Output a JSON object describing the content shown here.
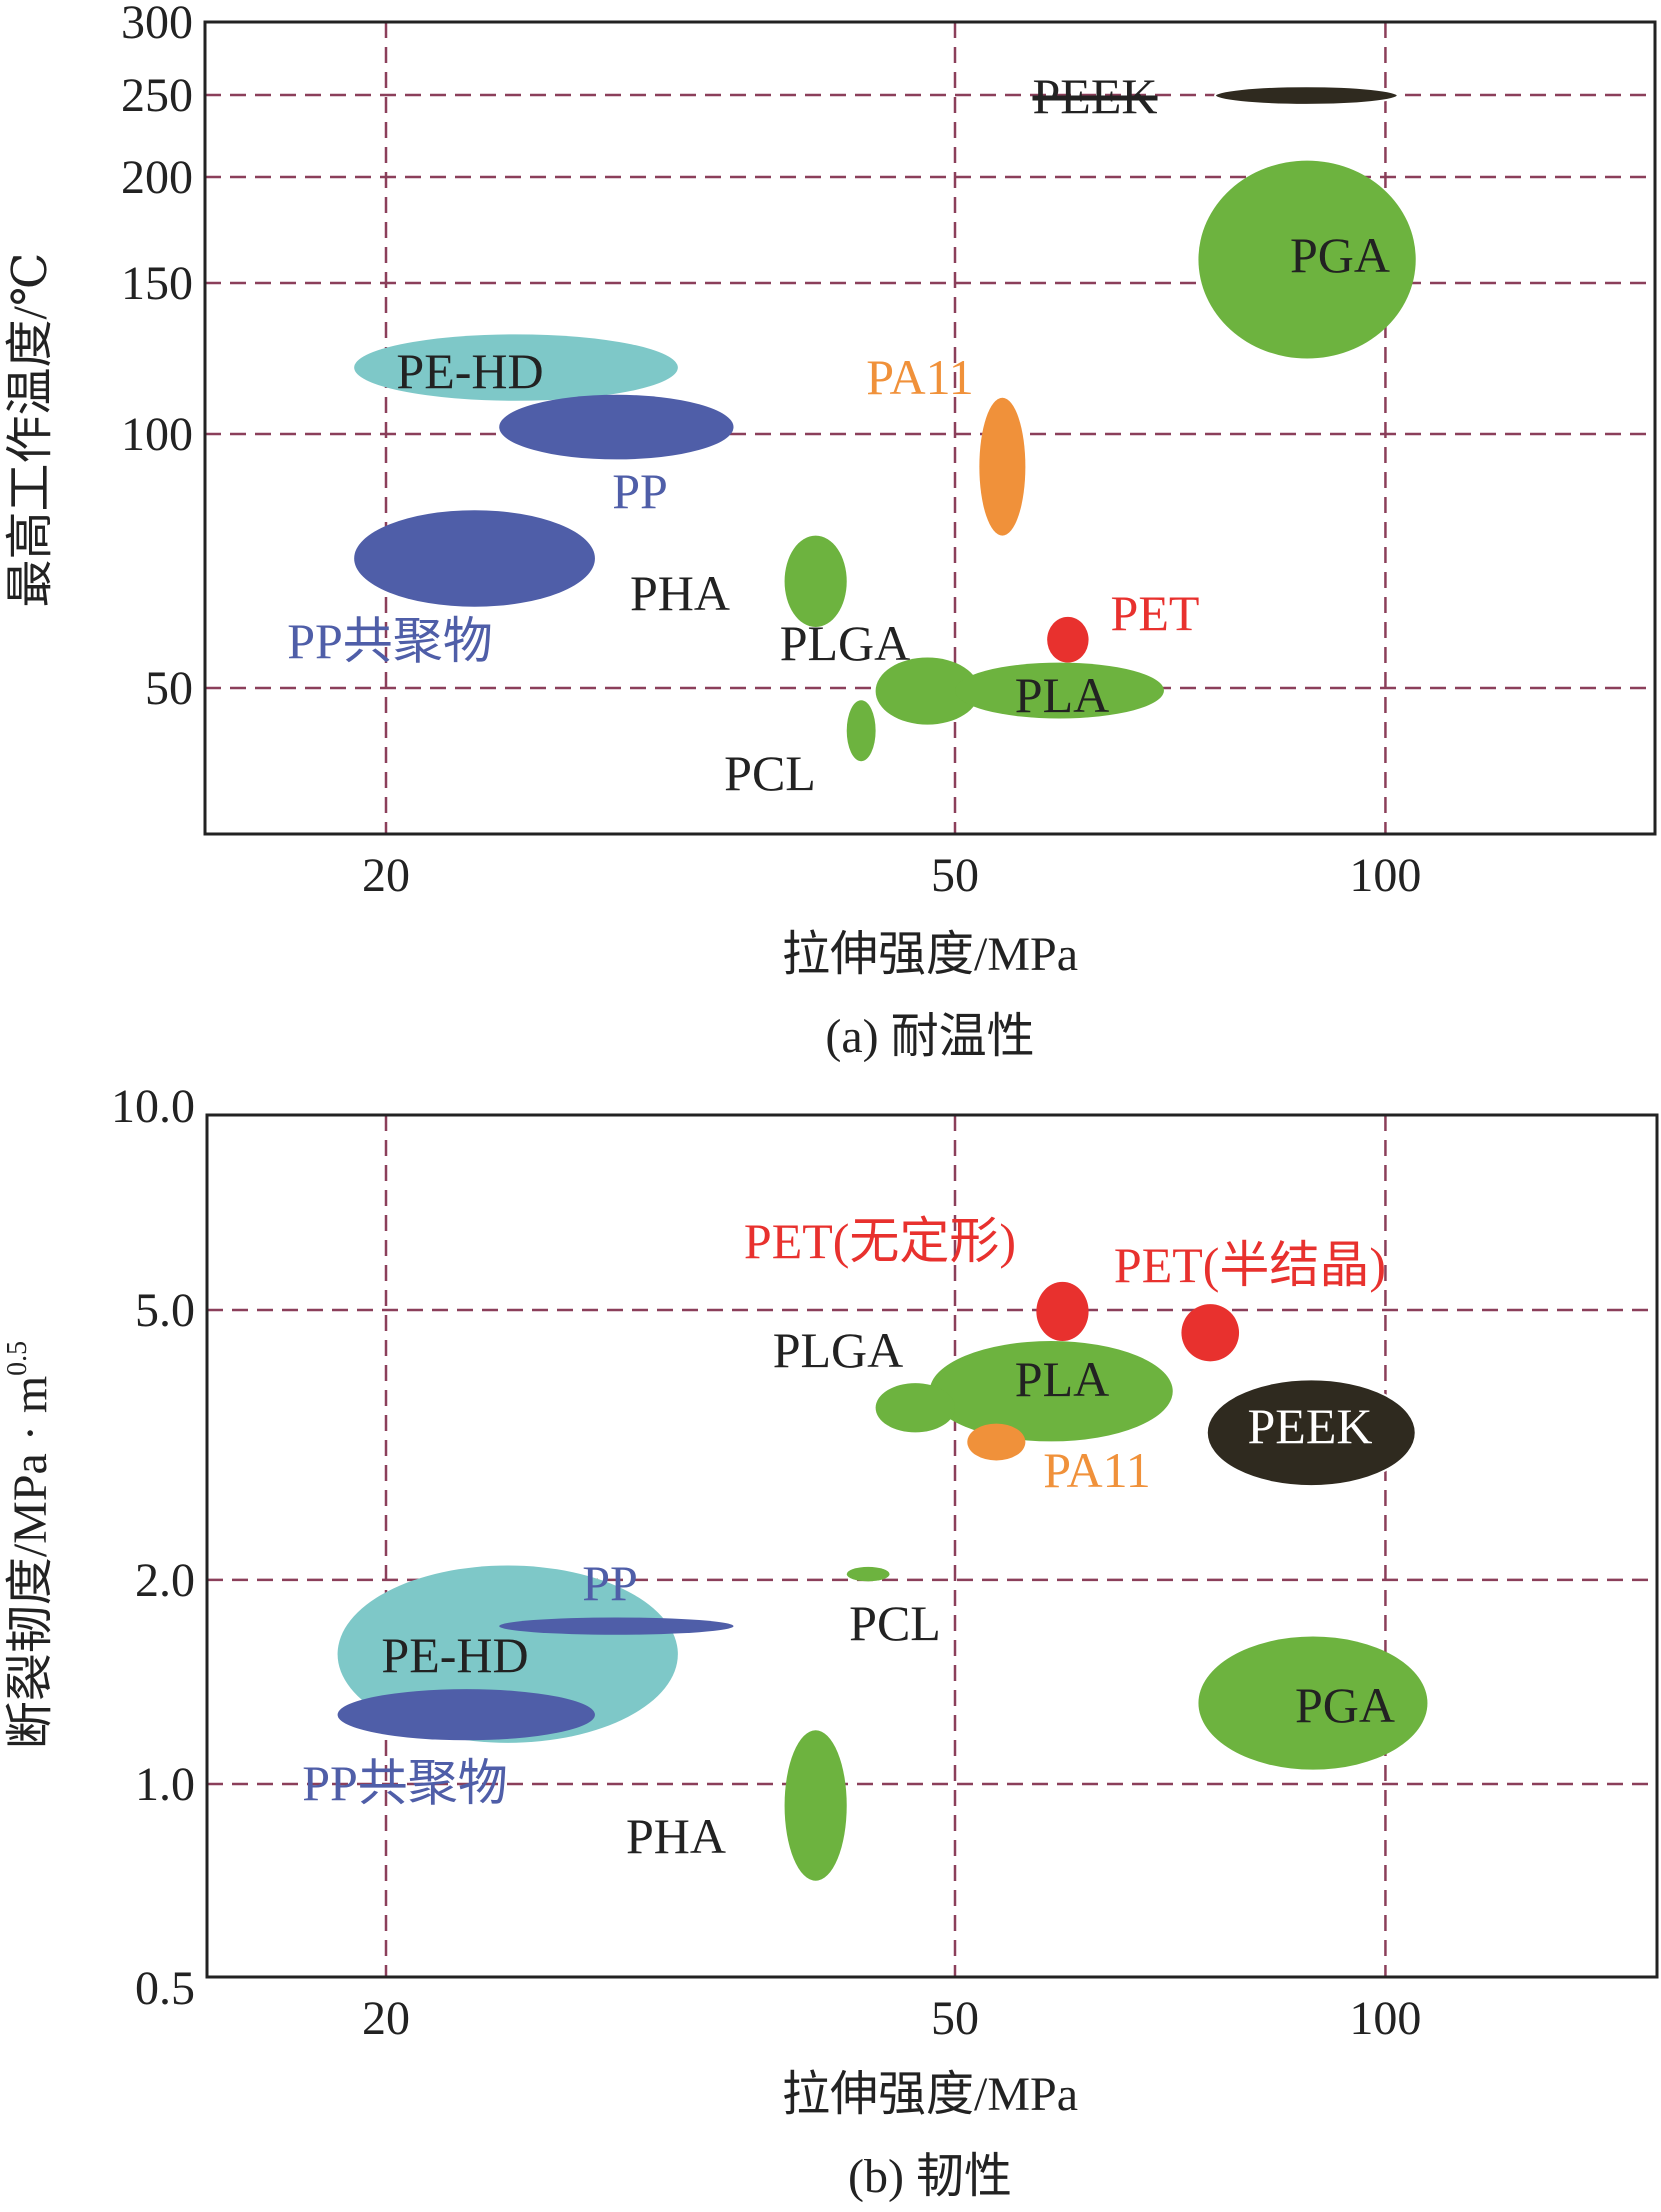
{
  "chart_data": [
    {
      "type": "scatter",
      "caption": "(a) 耐温性",
      "xlabel": "拉伸强度/MPa",
      "ylabel": "最高工作温度/℃",
      "x_ticks": [
        "20",
        "50",
        "100"
      ],
      "y_ticks": [
        "300",
        "250",
        "200",
        "150",
        "100",
        "50"
      ],
      "regions": [
        {
          "label": "PEEK",
          "x": [
            76,
            102
          ],
          "y": [
            244,
            256
          ],
          "color": "#2f2a1f"
        },
        {
          "label": "PGA",
          "x": [
            74,
            105
          ],
          "y": [
            125,
            210
          ],
          "color": "#6db33f"
        },
        {
          "label": "PE-HD",
          "x": [
            19,
            32
          ],
          "y": [
            111,
            133
          ],
          "color": "#7ec8c8"
        },
        {
          "label": "PP",
          "x": [
            24,
            35
          ],
          "y": [
            95,
            113
          ],
          "color": "#4f5ea8"
        },
        {
          "label": "PA11",
          "x": [
            52,
            56
          ],
          "y": [
            80,
            112
          ],
          "color": "#f0913a"
        },
        {
          "label": "PP共聚物",
          "x": [
            19,
            28
          ],
          "y": [
            66,
            85
          ],
          "color": "#4f5ea8"
        },
        {
          "label": "PHA",
          "x": [
            38,
            42
          ],
          "y": [
            62,
            80
          ],
          "color": "#6db33f"
        },
        {
          "label": "PET",
          "x": [
            58,
            62
          ],
          "y": [
            55,
            64
          ],
          "color": "#e8312e"
        },
        {
          "label": "PLGA",
          "x": [
            44,
            52
          ],
          "y": [
            44,
            56
          ],
          "color": "#6db33f"
        },
        {
          "label": "PLA",
          "x": [
            50,
            70
          ],
          "y": [
            45,
            55
          ],
          "color": "#6db33f"
        },
        {
          "label": "PCL",
          "x": [
            42,
            44
          ],
          "y": [
            38,
            48
          ],
          "color": "#6db33f"
        }
      ]
    },
    {
      "type": "scatter",
      "caption": "(b) 韧性",
      "xlabel": "拉伸强度/MPa",
      "ylabel": "断裂韧度/MPa · m",
      "ylabel_sup": "0.5",
      "x_ticks": [
        "20",
        "50",
        "100"
      ],
      "y_ticks": [
        "10.0",
        "5.0",
        "2.0",
        "1.0",
        "0.5"
      ],
      "regions": [
        {
          "label": "PET(无定形)",
          "x": [
            57,
            62
          ],
          "y": [
            4.5,
            5.5
          ],
          "color": "#e8312e"
        },
        {
          "label": "PET(半结晶)",
          "x": [
            72,
            79
          ],
          "y": [
            4.2,
            5.1
          ],
          "color": "#e8312e"
        },
        {
          "label": "PLA",
          "x": [
            48,
            71
          ],
          "y": [
            3.2,
            4.5
          ],
          "color": "#6db33f"
        },
        {
          "label": "PLGA",
          "x": [
            44,
            50
          ],
          "y": [
            3.3,
            3.9
          ],
          "color": "#6db33f"
        },
        {
          "label": "PA11",
          "x": [
            51,
            56
          ],
          "y": [
            3.0,
            3.4
          ],
          "color": "#f0913a"
        },
        {
          "label": "PEEK",
          "x": [
            75,
            105
          ],
          "y": [
            2.75,
            3.95
          ],
          "color": "#2f2a1f"
        },
        {
          "label": "PE-HD",
          "x": [
            18.5,
            32
          ],
          "y": [
            1.15,
            2.1
          ],
          "color": "#7ec8c8"
        },
        {
          "label": "PP",
          "x": [
            24,
            35
          ],
          "y": [
            1.66,
            1.76
          ],
          "color": "#4f5ea8"
        },
        {
          "label": "PP共聚物",
          "x": [
            18.5,
            28
          ],
          "y": [
            1.16,
            1.38
          ],
          "color": "#4f5ea8"
        },
        {
          "label": "PCL",
          "x": [
            42,
            45
          ],
          "y": [
            1.99,
            2.09
          ],
          "color": "#6db33f"
        },
        {
          "label": "PHA",
          "x": [
            38,
            42
          ],
          "y": [
            0.72,
            1.2
          ],
          "color": "#6db33f"
        },
        {
          "label": "PGA",
          "x": [
            74,
            107
          ],
          "y": [
            1.05,
            1.65
          ],
          "color": "#6db33f"
        }
      ]
    }
  ]
}
